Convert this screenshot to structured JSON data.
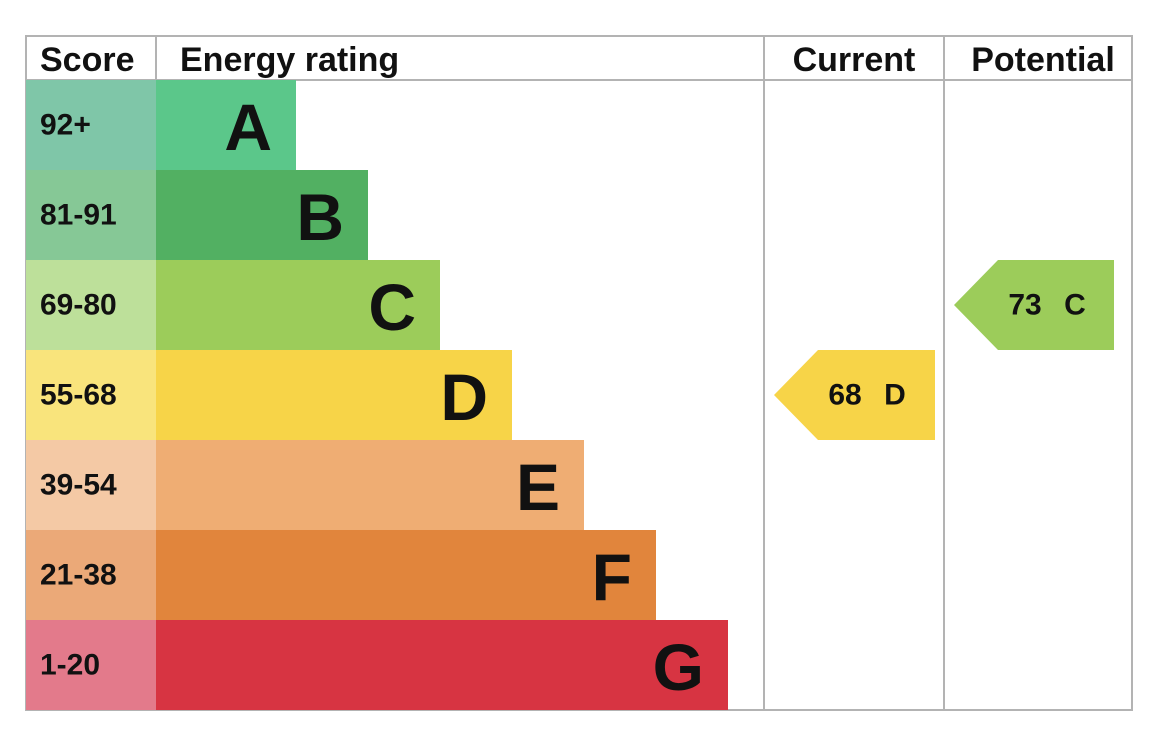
{
  "header": {
    "score": "Score",
    "rating": "Energy rating",
    "current": "Current",
    "potential": "Potential"
  },
  "bands": [
    {
      "score": "92+",
      "letter": "A",
      "color": "#5bc78a",
      "score_color": "#7fc6a8"
    },
    {
      "score": "81-91",
      "letter": "B",
      "color": "#52b062",
      "score_color": "#86c896"
    },
    {
      "score": "69-80",
      "letter": "C",
      "color": "#9ccc5a",
      "score_color": "#bde09a"
    },
    {
      "score": "55-68",
      "letter": "D",
      "color": "#f7d448",
      "score_color": "#f9e47c"
    },
    {
      "score": "39-54",
      "letter": "E",
      "color": "#efad73",
      "score_color": "#f4c9a5"
    },
    {
      "score": "21-38",
      "letter": "F",
      "color": "#e1853c",
      "score_color": "#eba978"
    },
    {
      "score": "1-20",
      "letter": "G",
      "color": "#d73442",
      "score_color": "#e37a8b"
    }
  ],
  "current": {
    "value": 68,
    "letter": "D"
  },
  "potential": {
    "value": 73,
    "letter": "C"
  }
}
